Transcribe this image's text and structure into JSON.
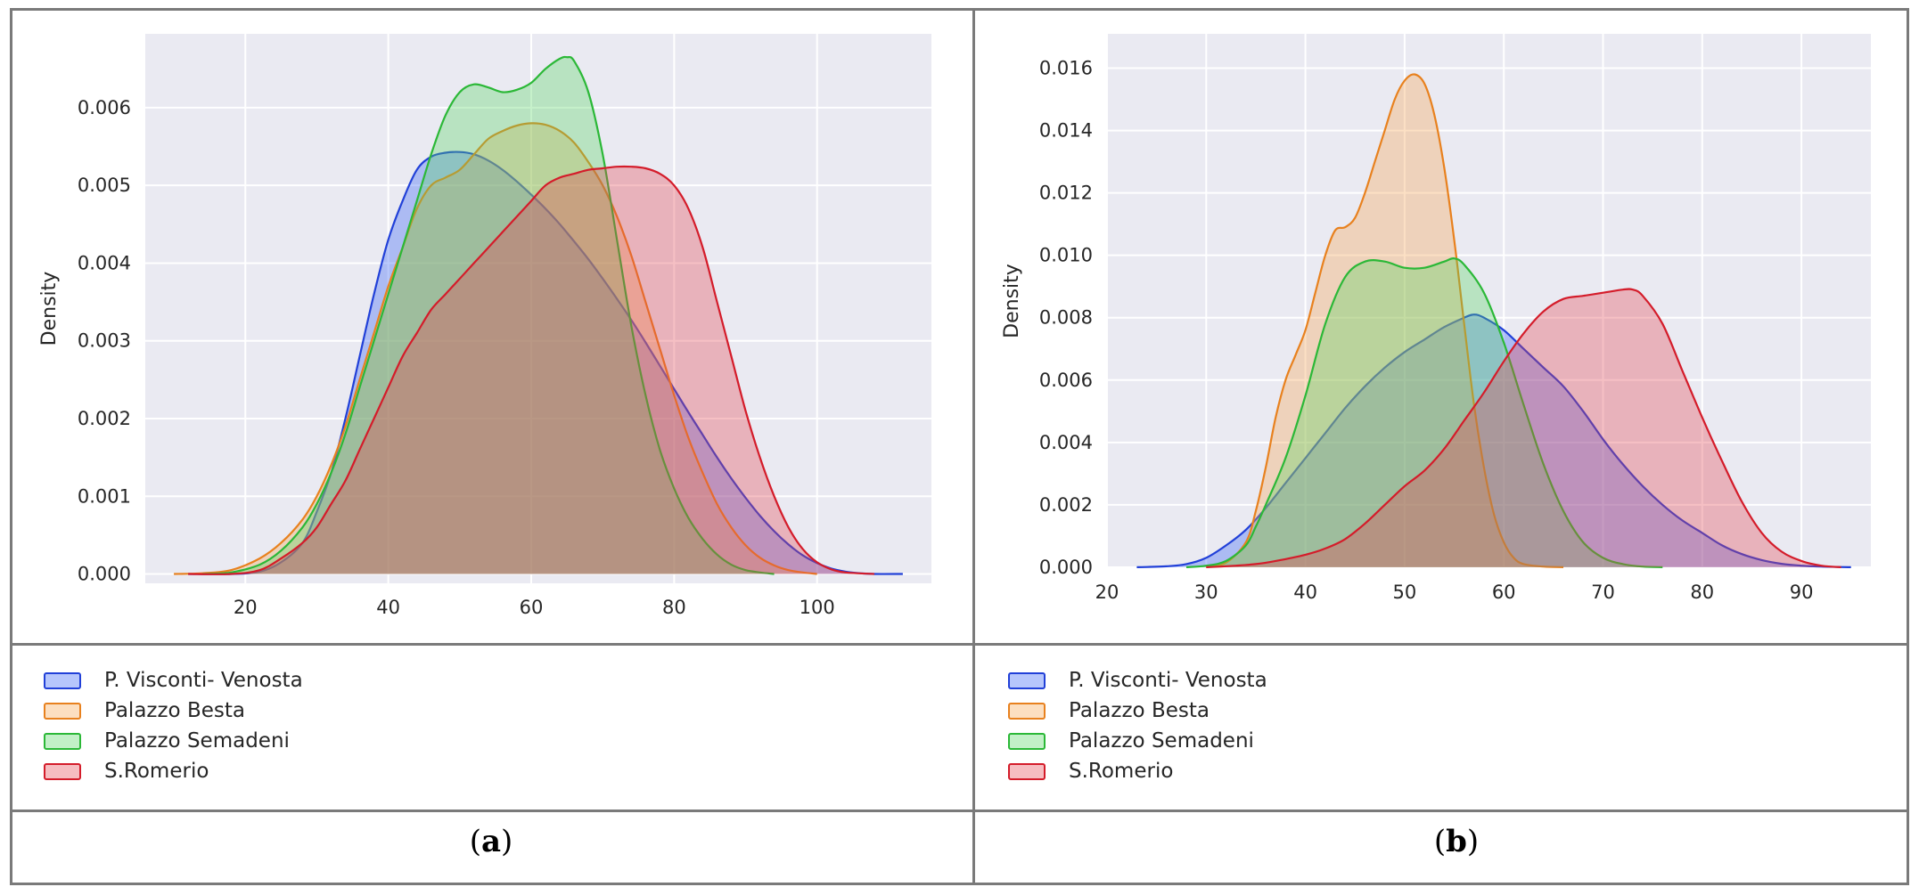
{
  "legend": [
    "P. Visconti- Venosta",
    "Palazzo Besta",
    "Palazzo Semadeni",
    "S.Romerio"
  ],
  "colors": {
    "P. Visconti- Venosta": "#2140d8",
    "Palazzo Besta": "#e8811e",
    "Palazzo Semadeni": "#2bb837",
    "S.Romerio": "#d41c2a"
  },
  "fill_colors": {
    "P. Visconti- Venosta": "#2e5cf5",
    "Palazzo Besta": "#f6a24b",
    "Palazzo Semadeni": "#51d35e",
    "S.Romerio": "#e5414c"
  },
  "captions": {
    "a": "a",
    "b": "b"
  },
  "chart_data": [
    {
      "type": "area",
      "title": "",
      "xlabel": "",
      "ylabel": "Density",
      "xlim": [
        6,
        116
      ],
      "ylim": [
        -0.00012,
        0.00695
      ],
      "xticks": [
        20,
        40,
        60,
        80,
        100
      ],
      "yticks": [
        0.0,
        0.001,
        0.002,
        0.003,
        0.004,
        0.005,
        0.006
      ],
      "ytick_labels": [
        "0.000",
        "0.001",
        "0.002",
        "0.003",
        "0.004",
        "0.005",
        "0.006"
      ],
      "series": [
        {
          "name": "P. Visconti- Venosta",
          "x": [
            12,
            18,
            22,
            25,
            28,
            30,
            32,
            34,
            36,
            38,
            40,
            42,
            44,
            46,
            48,
            50,
            52,
            54,
            56,
            58,
            60,
            62,
            64,
            66,
            68,
            70,
            72,
            74,
            76,
            78,
            80,
            82,
            84,
            86,
            88,
            90,
            92,
            94,
            96,
            98,
            100,
            102,
            104,
            106,
            108,
            112
          ],
          "y": [
            0,
            0,
            3e-05,
            0.00015,
            0.0004,
            0.0008,
            0.0013,
            0.002,
            0.0028,
            0.0036,
            0.0043,
            0.0048,
            0.0052,
            0.00537,
            0.00542,
            0.00543,
            0.0054,
            0.00532,
            0.0052,
            0.00505,
            0.00488,
            0.0047,
            0.0045,
            0.00428,
            0.00405,
            0.0038,
            0.00354,
            0.00327,
            0.00298,
            0.00268,
            0.00238,
            0.00208,
            0.00179,
            0.0015,
            0.00123,
            0.00098,
            0.00075,
            0.00055,
            0.00038,
            0.00024,
            0.00014,
            7e-05,
            3e-05,
            1e-05,
            0,
            0
          ]
        },
        {
          "name": "Palazzo Besta",
          "x": [
            10,
            14,
            18,
            22,
            25,
            28,
            30,
            32,
            34,
            36,
            38,
            40,
            42,
            44,
            46,
            48,
            50,
            52,
            54,
            56,
            58,
            60,
            62,
            64,
            66,
            68,
            70,
            72,
            74,
            76,
            78,
            80,
            82,
            84,
            86,
            88,
            90,
            92,
            94,
            96,
            98,
            100
          ],
          "y": [
            0,
            1e-05,
            5e-05,
            0.0002,
            0.0004,
            0.0007,
            0.001,
            0.0014,
            0.0019,
            0.0025,
            0.0031,
            0.0037,
            0.0042,
            0.0047,
            0.005,
            0.0051,
            0.0052,
            0.0054,
            0.0056,
            0.0057,
            0.00577,
            0.0058,
            0.00578,
            0.0057,
            0.00555,
            0.0053,
            0.005,
            0.0046,
            0.0041,
            0.0035,
            0.0029,
            0.0023,
            0.00175,
            0.0013,
            0.0009,
            0.0006,
            0.00037,
            0.00021,
            0.00011,
            5e-05,
            2e-05,
            0
          ]
        },
        {
          "name": "Palazzo Semadeni",
          "x": [
            14,
            18,
            22,
            25,
            28,
            30,
            32,
            34,
            36,
            38,
            40,
            42,
            44,
            46,
            48,
            50,
            52,
            54,
            56,
            58,
            60,
            62,
            64,
            65,
            66,
            68,
            70,
            72,
            74,
            76,
            78,
            80,
            82,
            84,
            86,
            88,
            90,
            92,
            94
          ],
          "y": [
            0,
            2e-05,
            0.00012,
            0.0003,
            0.0006,
            0.0009,
            0.0013,
            0.0018,
            0.0024,
            0.003,
            0.0036,
            0.0042,
            0.0048,
            0.0054,
            0.0059,
            0.0062,
            0.0063,
            0.00626,
            0.0062,
            0.00623,
            0.00632,
            0.0065,
            0.00663,
            0.00665,
            0.0066,
            0.0062,
            0.0054,
            0.0043,
            0.0032,
            0.0023,
            0.0016,
            0.0011,
            0.00072,
            0.00045,
            0.00025,
            0.00012,
            5e-05,
            2e-05,
            0
          ]
        },
        {
          "name": "S.Romerio",
          "x": [
            12,
            18,
            22,
            25,
            28,
            30,
            32,
            34,
            36,
            38,
            40,
            42,
            44,
            46,
            48,
            50,
            52,
            54,
            56,
            58,
            60,
            62,
            64,
            66,
            68,
            70,
            72,
            74,
            76,
            78,
            80,
            82,
            84,
            86,
            88,
            90,
            92,
            94,
            96,
            98,
            100,
            102,
            104,
            108
          ],
          "y": [
            0,
            0,
            5e-05,
            0.0002,
            0.0004,
            0.0006,
            0.0009,
            0.0012,
            0.0016,
            0.002,
            0.0024,
            0.0028,
            0.0031,
            0.0034,
            0.0036,
            0.0038,
            0.004,
            0.0042,
            0.0044,
            0.0046,
            0.0048,
            0.005,
            0.0051,
            0.00515,
            0.0052,
            0.00522,
            0.00524,
            0.00524,
            0.00522,
            0.00515,
            0.005,
            0.0047,
            0.0042,
            0.0035,
            0.0028,
            0.0021,
            0.0015,
            0.001,
            0.0006,
            0.00032,
            0.00015,
            6e-05,
            2e-05,
            0
          ]
        }
      ]
    },
    {
      "type": "area",
      "title": "",
      "xlabel": "",
      "ylabel": "Density",
      "xlim": [
        20,
        97
      ],
      "ylim": [
        -3e-05,
        0.0171
      ],
      "xticks": [
        20,
        30,
        40,
        50,
        60,
        70,
        80,
        90
      ],
      "yticks": [
        0.0,
        0.002,
        0.004,
        0.006,
        0.008,
        0.01,
        0.012,
        0.014,
        0.016
      ],
      "ytick_labels": [
        "0.000",
        "0.002",
        "0.004",
        "0.006",
        "0.008",
        "0.010",
        "0.012",
        "0.014",
        "0.016"
      ],
      "series": [
        {
          "name": "P. Visconti- Venosta",
          "x": [
            23,
            26,
            28,
            30,
            32,
            34,
            36,
            38,
            40,
            42,
            44,
            46,
            48,
            50,
            52,
            54,
            56,
            57,
            58,
            60,
            62,
            64,
            66,
            68,
            70,
            72,
            74,
            76,
            78,
            80,
            82,
            84,
            86,
            88,
            90,
            92,
            95
          ],
          "y": [
            0,
            3e-05,
            0.0001,
            0.0003,
            0.0007,
            0.0012,
            0.0019,
            0.0027,
            0.0035,
            0.0043,
            0.0051,
            0.0058,
            0.0064,
            0.0069,
            0.0073,
            0.0077,
            0.008,
            0.0081,
            0.008,
            0.0076,
            0.007,
            0.0064,
            0.0058,
            0.005,
            0.0041,
            0.0033,
            0.0026,
            0.002,
            0.0015,
            0.0011,
            0.0007,
            0.00042,
            0.00023,
            0.00011,
            5e-05,
            2e-05,
            0
          ]
        },
        {
          "name": "Palazzo Besta",
          "x": [
            30,
            32,
            34,
            35,
            36,
            37,
            38,
            39,
            40,
            41,
            42,
            43,
            44,
            45,
            46,
            47,
            48,
            49,
            50,
            51,
            52,
            53,
            54,
            55,
            56,
            57,
            58,
            59,
            60,
            61,
            62,
            64,
            66
          ],
          "y": [
            0,
            0.00015,
            0.0008,
            0.0018,
            0.0032,
            0.0048,
            0.006,
            0.0068,
            0.0076,
            0.0088,
            0.01,
            0.0108,
            0.0109,
            0.0112,
            0.012,
            0.013,
            0.014,
            0.015,
            0.0156,
            0.0158,
            0.0155,
            0.0145,
            0.0128,
            0.0105,
            0.0078,
            0.0052,
            0.0032,
            0.0017,
            0.0008,
            0.0003,
            0.0001,
            2e-05,
            0
          ]
        },
        {
          "name": "Palazzo Semadeni",
          "x": [
            28,
            30,
            32,
            34,
            35,
            36,
            38,
            40,
            42,
            44,
            46,
            48,
            50,
            52,
            54,
            55,
            56,
            58,
            60,
            62,
            64,
            66,
            68,
            70,
            72,
            74,
            76
          ],
          "y": [
            0,
            5e-05,
            0.0002,
            0.0007,
            0.0013,
            0.002,
            0.0035,
            0.0055,
            0.0078,
            0.0093,
            0.0098,
            0.0098,
            0.0096,
            0.0096,
            0.0098,
            0.0099,
            0.0097,
            0.0088,
            0.0072,
            0.0052,
            0.0033,
            0.0018,
            0.0008,
            0.0003,
            0.0001,
            2e-05,
            0
          ]
        },
        {
          "name": "S.Romerio",
          "x": [
            30,
            33,
            35,
            37,
            40,
            42,
            44,
            46,
            48,
            50,
            52,
            54,
            56,
            58,
            60,
            62,
            64,
            66,
            68,
            70,
            72,
            73,
            74,
            76,
            78,
            80,
            82,
            84,
            86,
            88,
            90,
            92,
            94
          ],
          "y": [
            0,
            5e-05,
            0.0001,
            0.0002,
            0.0004,
            0.0006,
            0.0009,
            0.0014,
            0.002,
            0.0026,
            0.0031,
            0.0038,
            0.0047,
            0.0056,
            0.0066,
            0.0075,
            0.0082,
            0.0086,
            0.0087,
            0.0088,
            0.0089,
            0.0089,
            0.0087,
            0.0078,
            0.0063,
            0.0048,
            0.0034,
            0.0021,
            0.0011,
            0.0005,
            0.0002,
            5e-05,
            0
          ]
        }
      ]
    }
  ]
}
